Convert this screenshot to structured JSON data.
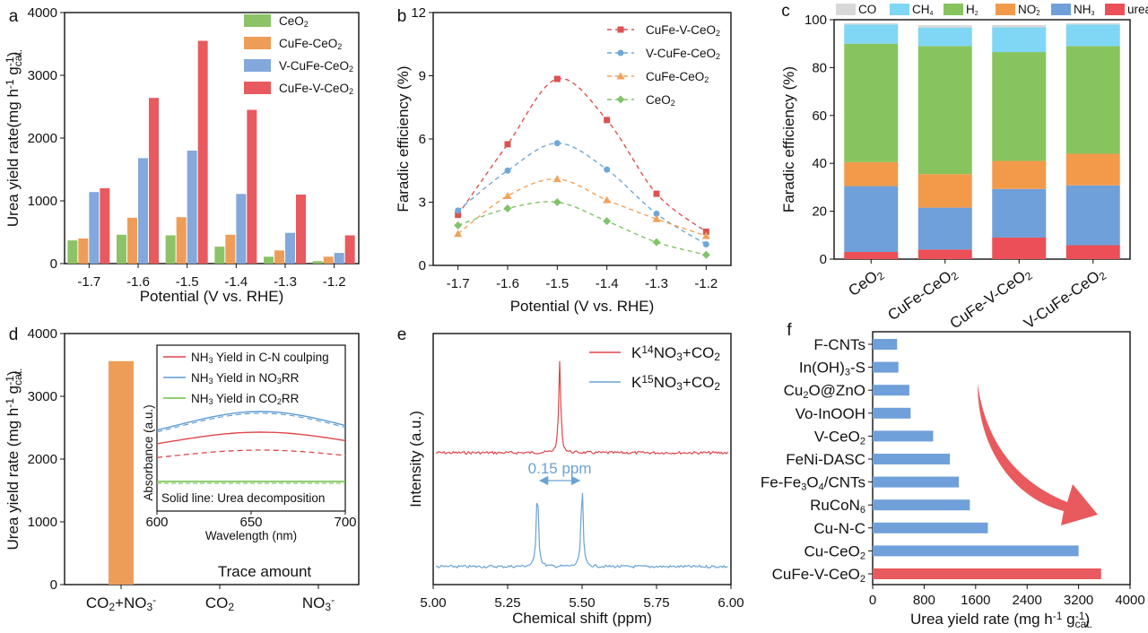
{
  "chart_data": [
    {
      "panel": "a",
      "type": "bar",
      "ylabel": "Urea yield rate(mg h-1 gcat.-1)",
      "xlabel": "Potential (V vs. RHE)",
      "categories": [
        "-1.7",
        "-1.6",
        "-1.5",
        "-1.4",
        "-1.3",
        "-1.2"
      ],
      "ylim": [
        0,
        4000
      ],
      "yticks": [
        "0",
        "1000",
        "2000",
        "3000",
        "4000"
      ],
      "series": [
        {
          "name": "CeO2",
          "color": "#8dc367",
          "values": [
            370,
            460,
            450,
            270,
            110,
            40
          ]
        },
        {
          "name": "CuFe-CeO2",
          "color": "#ee9d58",
          "values": [
            400,
            730,
            740,
            460,
            210,
            110
          ]
        },
        {
          "name": "V-CuFe-CeO2",
          "color": "#83a8dc",
          "values": [
            1140,
            1680,
            1800,
            1110,
            490,
            170
          ]
        },
        {
          "name": "CuFe-V-CeO2",
          "color": "#e85a5e",
          "values": [
            1200,
            2640,
            3550,
            2450,
            1100,
            450
          ]
        }
      ],
      "legend_position": "top-right"
    },
    {
      "panel": "b",
      "type": "line",
      "ylabel": "Faradic efficiency (%)",
      "xlabel": "Potential (V vs. RHE)",
      "x": [
        -1.7,
        -1.6,
        -1.5,
        -1.4,
        -1.3,
        -1.2
      ],
      "xticks": [
        "-1.7",
        "-1.6",
        "-1.5",
        "-1.4",
        "-1.3",
        "-1.2"
      ],
      "ylim": [
        0,
        12
      ],
      "yticks": [
        "0",
        "3",
        "6",
        "9",
        "12"
      ],
      "series": [
        {
          "name": "CuFe-V-CeO2",
          "color": "#d9534f",
          "marker": "square",
          "values": [
            2.4,
            5.75,
            8.85,
            6.9,
            3.4,
            1.6
          ]
        },
        {
          "name": "V-CuFe-CeO2",
          "color": "#6fa7d8",
          "marker": "circle",
          "values": [
            2.6,
            4.5,
            5.8,
            4.55,
            2.45,
            1.0
          ]
        },
        {
          "name": "CuFe-CeO2",
          "color": "#f0a35c",
          "marker": "triangle",
          "values": [
            1.5,
            3.3,
            4.1,
            3.1,
            2.2,
            1.4
          ]
        },
        {
          "name": "CeO2",
          "color": "#82c36a",
          "marker": "diamond",
          "values": [
            1.9,
            2.7,
            3.0,
            2.1,
            1.1,
            0.5
          ]
        }
      ],
      "legend_position": "top-right"
    },
    {
      "panel": "c",
      "type": "bar",
      "stacked": true,
      "ylabel": "Faradic efficiency (%)",
      "categories": [
        "CeO2",
        "CuFe-CeO2",
        "CuFe-V-CeO2",
        "V-CuFe-CeO2"
      ],
      "ylim": [
        0,
        100
      ],
      "yticks": [
        "0",
        "20",
        "40",
        "60",
        "80",
        "100"
      ],
      "series": [
        {
          "name": "urea",
          "color": "#ec4f57",
          "values": [
            3,
            4,
            9,
            5.8
          ]
        },
        {
          "name": "NH3",
          "color": "#6fa0d9",
          "values": [
            27.5,
            17.5,
            20.3,
            25
          ]
        },
        {
          "name": "NO2-",
          "color": "#f39a4a",
          "values": [
            10,
            14,
            11.7,
            13.2
          ]
        },
        {
          "name": "H2",
          "color": "#88c45e",
          "values": [
            49.5,
            53.5,
            45.5,
            45
          ]
        },
        {
          "name": "CH4",
          "color": "#7fd6f5",
          "values": [
            8,
            7.7,
            10.3,
            9
          ]
        },
        {
          "name": "CO",
          "color": "#d8d8d8",
          "values": [
            0.5,
            1,
            1,
            0.5
          ]
        }
      ],
      "legend_position": "top"
    },
    {
      "panel": "d",
      "type": "bar",
      "ylabel": "Urea yield rate (mg h-1 gcat.-1)",
      "categories": [
        "CO2+NO3-",
        "CO2",
        "NO3-"
      ],
      "values": [
        3560,
        0,
        0
      ],
      "color": "#ee9d58",
      "ylim": [
        0,
        4000
      ],
      "yticks": [
        "0",
        "1000",
        "2000",
        "3000",
        "4000"
      ],
      "annotation": "Trace amount",
      "inset": {
        "type": "line",
        "xlabel": "Wavelength (nm)",
        "ylabel": "Absorbance (a.u.)",
        "xlim": [
          600,
          700
        ],
        "xticks": [
          "600",
          "650",
          "700"
        ],
        "note": "Solid line: Urea decomposition",
        "series": [
          {
            "name": "NH3 Yield in C-N coulping",
            "color": "#e0464a",
            "dashed_companion": true,
            "peak": 655
          },
          {
            "name": "NH3 Yield in NO3RR",
            "color": "#5b9bd5",
            "peak": 655
          },
          {
            "name": "NH3 Yield in CO2RR",
            "color": "#6cbf45",
            "flat": true
          }
        ]
      }
    },
    {
      "panel": "e",
      "type": "line",
      "xlabel": "Chemical shift (ppm)",
      "ylabel": "Intensity (a.u.)",
      "xlim": [
        5.0,
        6.0
      ],
      "xticks": [
        "5.00",
        "5.25",
        "5.50",
        "5.75",
        "6.00"
      ],
      "series": [
        {
          "name": "K14NO3+CO2",
          "color": "#e0464a",
          "peaks": [
            5.425
          ]
        },
        {
          "name": "K15NO3+CO2",
          "color": "#6aa2d4",
          "peaks": [
            5.35,
            5.5
          ]
        }
      ],
      "annotation": "0.15 ppm"
    },
    {
      "panel": "f",
      "type": "bar",
      "orientation": "horizontal",
      "xlabel": "Urea yield rate (mg h-1 gcat.-1)",
      "xlim": [
        0,
        4000
      ],
      "xticks": [
        "0",
        "800",
        "1600",
        "2400",
        "3200",
        "4000"
      ],
      "categories": [
        "F-CNTs",
        "In(OH)3-S",
        "Cu2O@ZnO",
        "Vo-InOOH",
        "V-CeO2",
        "FeNi-DASC",
        "Fe-Fe3O4/CNTs",
        "RuCoN6",
        "Cu-N-C",
        "Cu-CeO2",
        "CuFe-V-CeO2"
      ],
      "values": [
        380,
        400,
        570,
        590,
        940,
        1200,
        1340,
        1510,
        1790,
        3200,
        3550
      ],
      "colors": [
        "#6fa0d9",
        "#6fa0d9",
        "#6fa0d9",
        "#6fa0d9",
        "#6fa0d9",
        "#6fa0d9",
        "#6fa0d9",
        "#6fa0d9",
        "#6fa0d9",
        "#6fa0d9",
        "#e85a5e"
      ]
    }
  ]
}
